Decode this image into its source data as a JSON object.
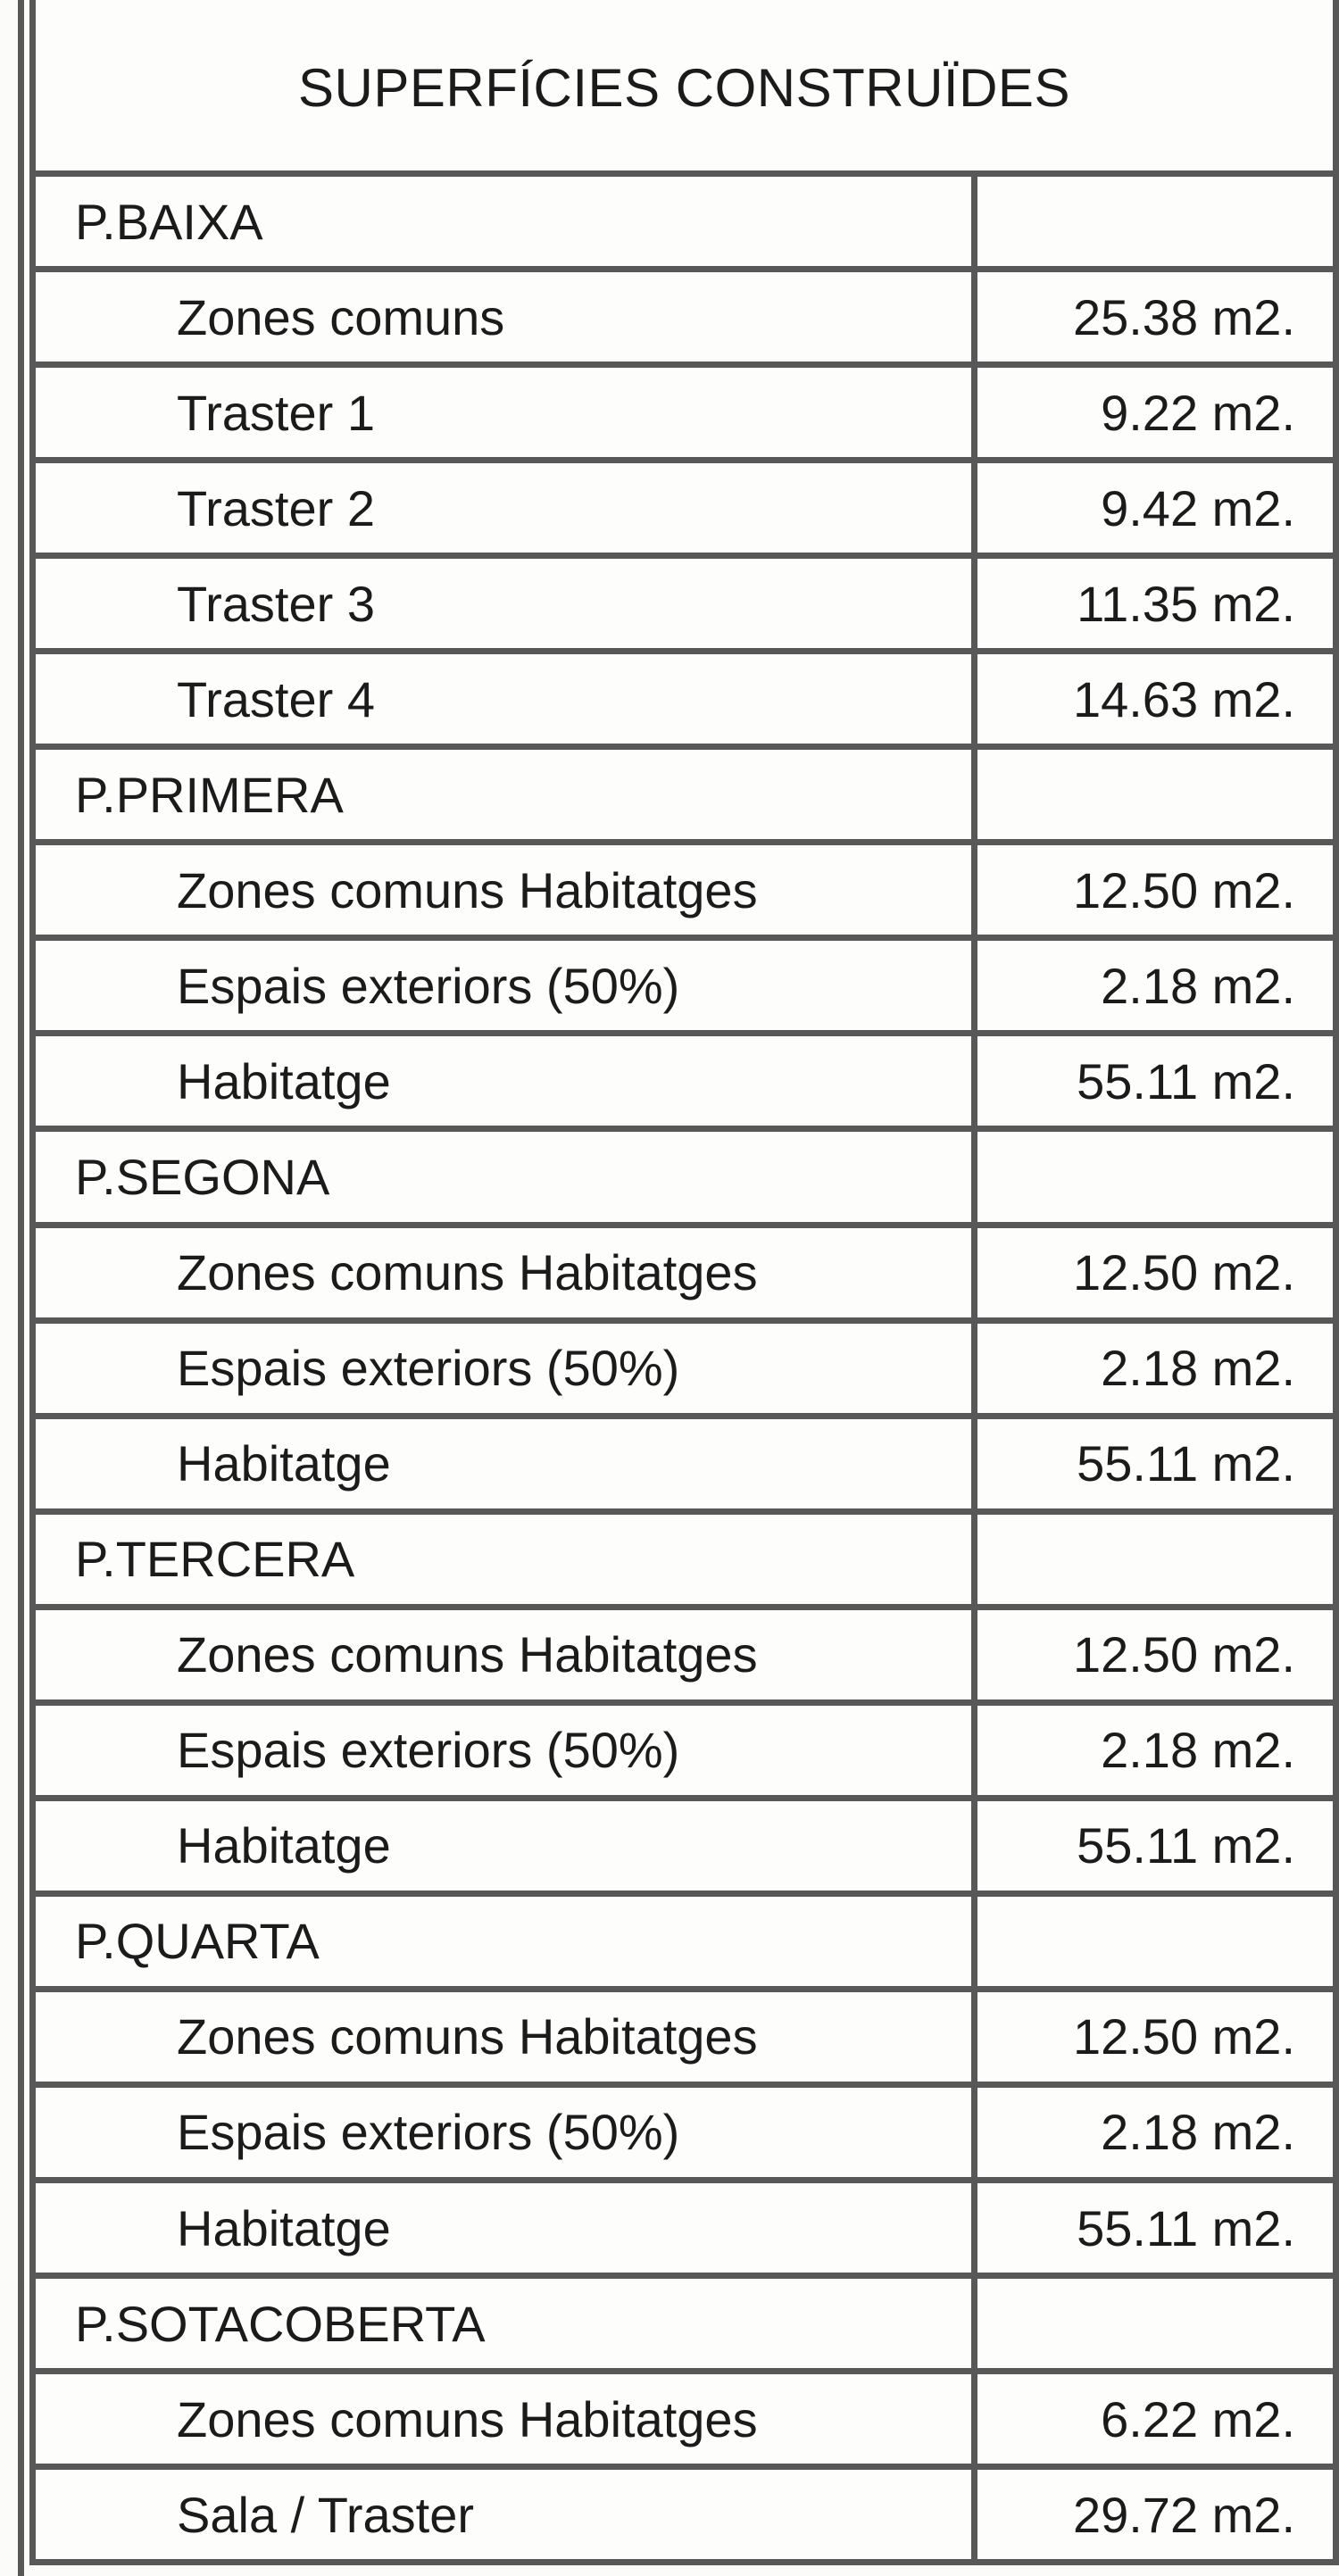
{
  "table": {
    "title": "SUPERFÍCIES CONSTRUÏDES",
    "unit": "m2.",
    "rows": [
      {
        "label": "P.BAIXA",
        "value": "",
        "group": true
      },
      {
        "label": "Zones comuns",
        "value": "25.38 m2.",
        "group": false
      },
      {
        "label": "Traster 1",
        "value": "9.22 m2.",
        "group": false
      },
      {
        "label": "Traster 2",
        "value": "9.42 m2.",
        "group": false
      },
      {
        "label": "Traster 3",
        "value": "11.35 m2.",
        "group": false
      },
      {
        "label": "Traster 4",
        "value": "14.63 m2.",
        "group": false
      },
      {
        "label": "P.PRIMERA",
        "value": "",
        "group": true
      },
      {
        "label": "Zones comuns Habitatges",
        "value": "12.50 m2.",
        "group": false
      },
      {
        "label": "Espais exteriors (50%)",
        "value": "2.18 m2.",
        "group": false
      },
      {
        "label": "Habitatge",
        "value": "55.11 m2.",
        "group": false
      },
      {
        "label": "P.SEGONA",
        "value": "",
        "group": true
      },
      {
        "label": "Zones comuns Habitatges",
        "value": "12.50 m2.",
        "group": false
      },
      {
        "label": "Espais exteriors (50%)",
        "value": "2.18 m2.",
        "group": false
      },
      {
        "label": "Habitatge",
        "value": "55.11 m2.",
        "group": false
      },
      {
        "label": "P.TERCERA",
        "value": "",
        "group": true
      },
      {
        "label": "Zones comuns Habitatges",
        "value": "12.50 m2.",
        "group": false
      },
      {
        "label": "Espais exteriors (50%)",
        "value": "2.18 m2.",
        "group": false
      },
      {
        "label": "Habitatge",
        "value": "55.11 m2.",
        "group": false
      },
      {
        "label": "P.QUARTA",
        "value": "",
        "group": true
      },
      {
        "label": "Zones comuns Habitatges",
        "value": "12.50 m2.",
        "group": false
      },
      {
        "label": "Espais exteriors (50%)",
        "value": "2.18 m2.",
        "group": false
      },
      {
        "label": "Habitatge",
        "value": "55.11 m2.",
        "group": false
      },
      {
        "label": "P.SOTACOBERTA",
        "value": "",
        "group": true
      },
      {
        "label": "Zones comuns Habitatges",
        "value": "6.22 m2.",
        "group": false
      },
      {
        "label": "Sala / Traster",
        "value": "29.72 m2.",
        "group": false
      }
    ],
    "colors": {
      "border": "#585858",
      "background": "#fbfbfa",
      "text": "#1b1b1b"
    }
  }
}
